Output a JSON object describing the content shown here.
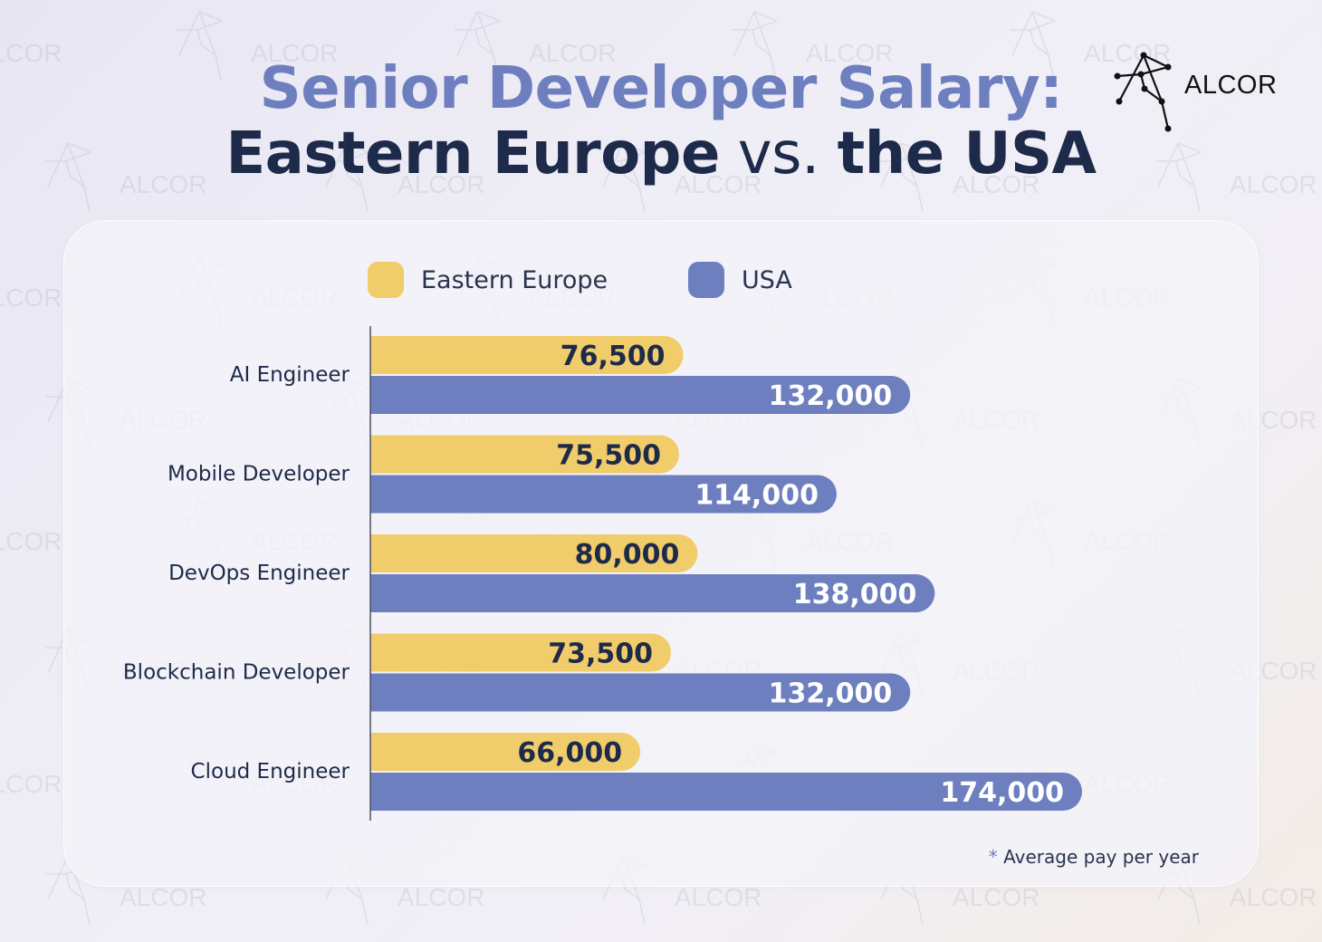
{
  "title": {
    "line1": "Senior Developer Salary:",
    "line2_part1": "Eastern Europe",
    "line2_vs": " vs. ",
    "line2_part2": "the USA"
  },
  "logo": {
    "text": "ALCOR",
    "watermark_text": "ALCOR"
  },
  "legend": [
    {
      "label": "Eastern Europe",
      "color": "#f0cc6a"
    },
    {
      "label": "USA",
      "color": "#6e7fc0"
    }
  ],
  "footnote": {
    "star": "*",
    "text": "Average pay per year"
  },
  "colors": {
    "accent": "#6e7fc0",
    "dark": "#1e2a4a",
    "eastern_europe": "#f0cc6a",
    "usa": "#6e7fc0"
  },
  "chart_data": {
    "type": "bar",
    "orientation": "horizontal",
    "categories": [
      "AI Engineer",
      "Mobile Developer",
      "DevOps Engineer",
      "Blockchain Developer",
      "Cloud Engineer"
    ],
    "series": [
      {
        "name": "Eastern Europe",
        "values": [
          76500,
          75500,
          80000,
          73500,
          66000
        ],
        "labels": [
          "76,500",
          "75,500",
          "80,000",
          "73,500",
          "66,000"
        ]
      },
      {
        "name": "USA",
        "values": [
          132000,
          114000,
          138000,
          132000,
          174000
        ],
        "labels": [
          "132,000",
          "114,000",
          "138,000",
          "132,000",
          "174,000"
        ]
      }
    ],
    "title": "Senior Developer Salary: Eastern Europe vs. the USA",
    "xlabel": "",
    "ylabel": "",
    "xlim": [
      0,
      174000
    ],
    "grid": false,
    "legend_position": "top"
  }
}
